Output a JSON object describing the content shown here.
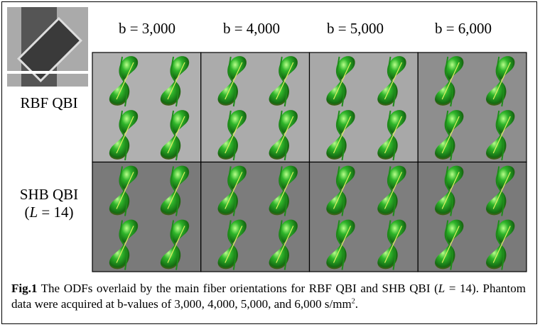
{
  "figure": {
    "columns": [
      "b = 3,000",
      "b = 4,000",
      "b = 5,000",
      "b = 6,000"
    ],
    "rows": [
      {
        "label_lines": [
          [
            "RBF QBI"
          ]
        ]
      },
      {
        "label_lines": [
          [
            "SHB QBI"
          ],
          [
            "(",
            "L",
            " = 14)"
          ]
        ]
      }
    ],
    "caption": [
      "Fig.1",
      " The ODFs overlaid by the main fiber orientations for RBF QBI and SHB QBI (",
      "L",
      " = 14). Phantom data were acquired at b-values of 3,000, 4,000, 5,000, and 6,000 s/mm",
      "2",
      "."
    ]
  }
}
